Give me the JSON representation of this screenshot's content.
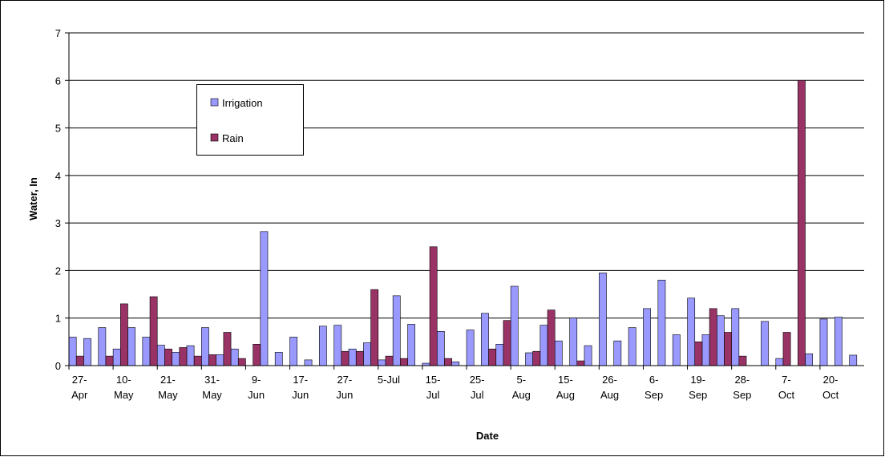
{
  "chart_data": {
    "type": "bar",
    "x_label": "Date",
    "y_label": "Water, In",
    "categories": [
      "27-Apr",
      null,
      null,
      "10-May",
      null,
      null,
      "21-May",
      null,
      null,
      "31-May",
      null,
      null,
      "9-Jun",
      null,
      null,
      "17-Jun",
      null,
      null,
      "27-Jun",
      null,
      null,
      "5-Jul",
      null,
      null,
      "15-Jul",
      null,
      null,
      "25-Jul",
      null,
      null,
      "5-Aug",
      null,
      null,
      "15-Aug",
      null,
      null,
      "26-Aug",
      null,
      null,
      "6-Sep",
      null,
      null,
      "19-Sep",
      null,
      null,
      "28-Sep",
      null,
      null,
      "7-Oct",
      null,
      null,
      "20-Oct",
      null,
      null
    ],
    "series": [
      {
        "name": "Irrigation",
        "color": "#9999ff",
        "values": [
          0.6,
          0.57,
          0.8,
          0.35,
          0.8,
          0.6,
          0.43,
          0.28,
          0.42,
          0.8,
          0.23,
          0.35,
          0,
          2.82,
          0.28,
          0.6,
          0.12,
          0.83,
          0.85,
          0.35,
          0.48,
          0.12,
          1.47,
          0.87,
          0.05,
          0.72,
          0.08,
          0.75,
          1.1,
          0.45,
          1.67,
          0.27,
          0.85,
          0.52,
          1.0,
          0.42,
          1.95,
          0.52,
          0.8,
          1.2,
          1.8,
          0.65,
          1.42,
          0.65,
          1.05,
          1.2,
          0,
          0.93,
          0.15,
          0,
          0.25,
          0.98,
          1.02,
          0.22
        ]
      },
      {
        "name": "Rain",
        "color": "#993366",
        "values": [
          0.2,
          0,
          0.2,
          1.3,
          0,
          1.45,
          0.35,
          0.38,
          0.2,
          0.23,
          0.7,
          0.15,
          0.45,
          0,
          0,
          0,
          0,
          0,
          0.3,
          0.3,
          1.6,
          0.2,
          0.15,
          0,
          2.5,
          0.15,
          0,
          0,
          0.35,
          0.95,
          0,
          0.3,
          1.17,
          0,
          0.1,
          0,
          0,
          0,
          0,
          0,
          0,
          0,
          0.5,
          1.2,
          0.7,
          0.2,
          0,
          0,
          0.7,
          6.0,
          0,
          0,
          0,
          0
        ]
      }
    ],
    "ylim": [
      0,
      7
    ],
    "yticks": [
      0,
      1,
      2,
      3,
      4,
      5,
      6,
      7
    ],
    "grid": true
  }
}
